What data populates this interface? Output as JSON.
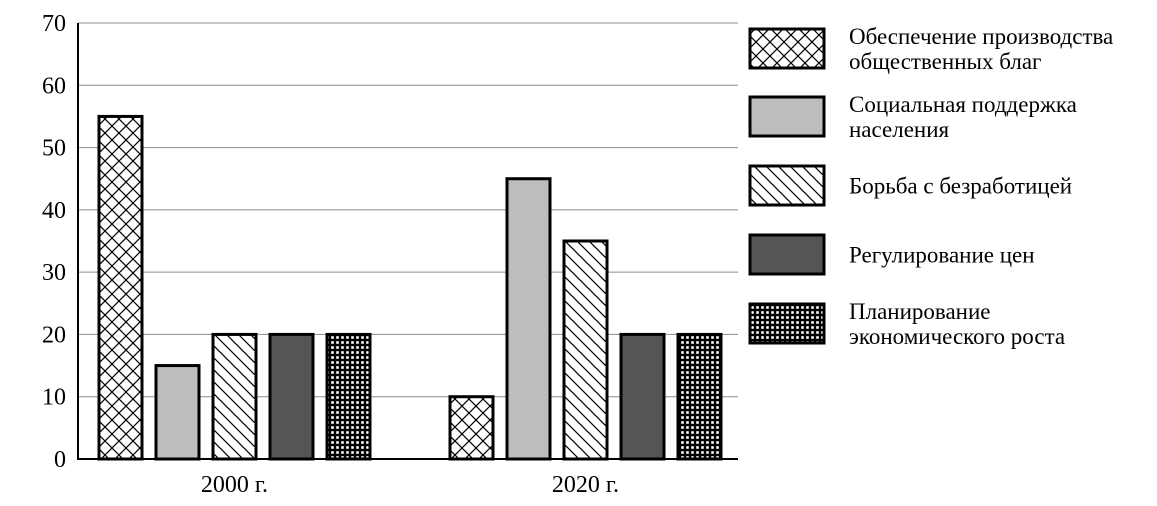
{
  "chart_data": {
    "type": "bar",
    "title": "",
    "xlabel": "",
    "ylabel": "",
    "ylim": [
      0,
      70
    ],
    "yticks": [
      0,
      10,
      20,
      30,
      40,
      50,
      60,
      70
    ],
    "grid": true,
    "legend_position": "right",
    "categories": [
      "2000 г.",
      "2020 г."
    ],
    "series": [
      {
        "name": "Обеспечение производства общественных благ",
        "legend_lines": [
          "Обеспечение производства",
          "общественных благ"
        ],
        "pattern": "crosshatch",
        "values": [
          55,
          10
        ]
      },
      {
        "name": "Социальная поддержка населения",
        "legend_lines": [
          "Социальная поддержка",
          "населения"
        ],
        "pattern": "light-gray",
        "values": [
          15,
          45
        ]
      },
      {
        "name": "Борьба с безработицей",
        "legend_lines": [
          "Борьба с безработицей"
        ],
        "pattern": "diagonal",
        "values": [
          20,
          35
        ]
      },
      {
        "name": "Регулирование цен",
        "legend_lines": [
          "Регулирование цен"
        ],
        "pattern": "dark-gray",
        "values": [
          20,
          20
        ]
      },
      {
        "name": "Планирование экономического роста",
        "legend_lines": [
          "Планирование",
          "экономического роста"
        ],
        "pattern": "grid",
        "values": [
          20,
          20
        ]
      }
    ]
  }
}
